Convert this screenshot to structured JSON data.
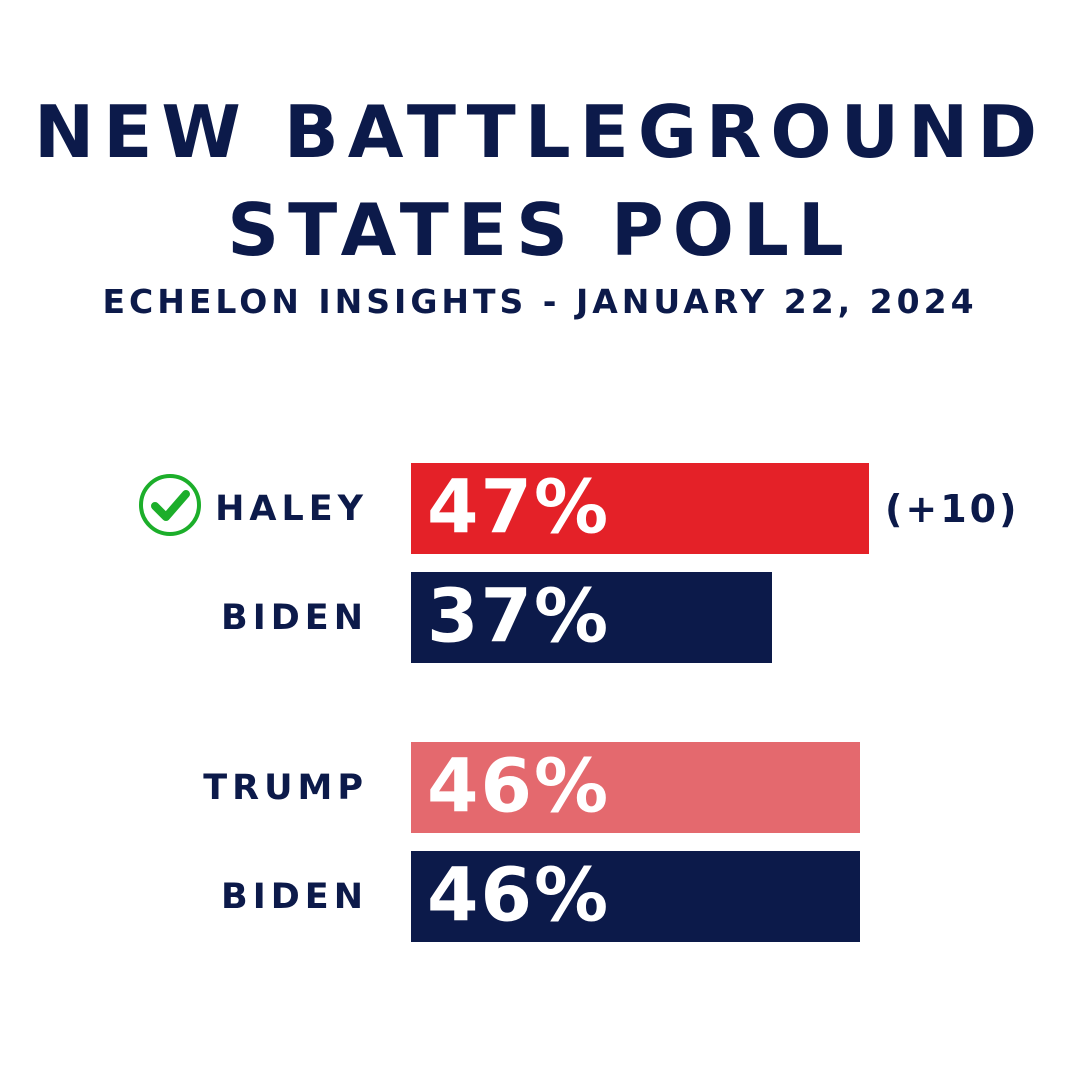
{
  "header": {
    "title_line_1": "NEW BATTLEGROUND",
    "title_line_2": "STATES POLL",
    "subtitle": "ECHELON INSIGHTS - JANUARY 22, 2024"
  },
  "colors": {
    "navy": "#0c1a4a",
    "red": "#e42128",
    "light_red": "#e4696e",
    "check_green": "#1cae2a"
  },
  "chart_data": [
    {
      "type": "bar",
      "orientation": "horizontal",
      "categories": [
        "HALEY",
        "BIDEN"
      ],
      "values": [
        47,
        37
      ],
      "value_labels": [
        "47%",
        "37%"
      ],
      "colors": [
        "#e42128",
        "#0c1a4a"
      ],
      "annotation": "(+10)",
      "winner_icon": "check-circle-icon",
      "xlim": [
        0,
        100
      ]
    },
    {
      "type": "bar",
      "orientation": "horizontal",
      "categories": [
        "TRUMP",
        "BIDEN"
      ],
      "values": [
        46,
        46
      ],
      "value_labels": [
        "46%",
        "46%"
      ],
      "colors": [
        "#e4696e",
        "#0c1a4a"
      ],
      "xlim": [
        0,
        100
      ]
    }
  ]
}
